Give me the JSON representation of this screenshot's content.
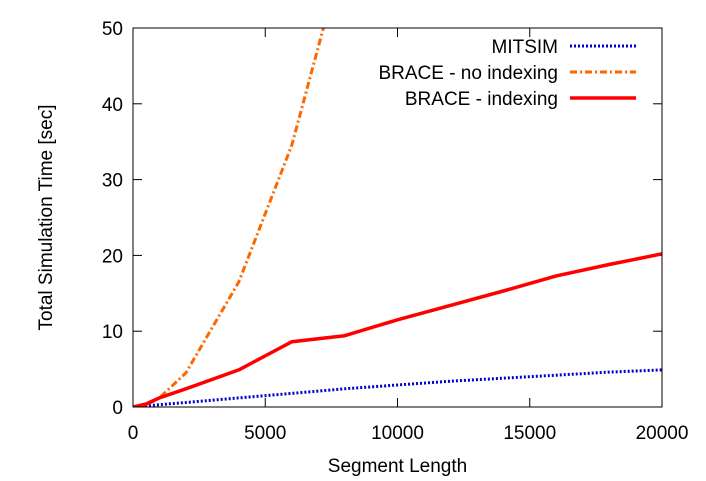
{
  "chart_data": {
    "type": "line",
    "title": "",
    "xlabel": "Segment Length",
    "ylabel": "Total Simulation Time [sec]",
    "xlim": [
      0,
      20000
    ],
    "ylim": [
      0,
      50
    ],
    "xticks": [
      0,
      5000,
      10000,
      15000,
      20000
    ],
    "yticks": [
      0,
      10,
      20,
      30,
      40,
      50
    ],
    "grid": false,
    "legend_position": "top-right",
    "series": [
      {
        "name": "MITSIM",
        "color": "#0000cc",
        "style": "dotted",
        "x": [
          0,
          1000,
          2000,
          4000,
          6000,
          8000,
          10000,
          12000,
          14000,
          16000,
          18000,
          20000
        ],
        "y": [
          0,
          0.3,
          0.6,
          1.2,
          1.8,
          2.4,
          2.9,
          3.4,
          3.8,
          4.2,
          4.6,
          4.9
        ]
      },
      {
        "name": "BRACE - no indexing",
        "color": "#ff6600",
        "style": "dash-dot",
        "x": [
          0,
          500,
          1000,
          2000,
          4000,
          6000,
          7200
        ],
        "y": [
          0,
          0.3,
          1.2,
          4.5,
          16.5,
          34.5,
          50
        ]
      },
      {
        "name": "BRACE - indexing",
        "color": "#ff0000",
        "style": "solid",
        "x": [
          0,
          500,
          1000,
          2000,
          4000,
          6000,
          8000,
          10000,
          12000,
          14000,
          16000,
          18000,
          20000
        ],
        "y": [
          0,
          0.4,
          1.2,
          2.4,
          4.9,
          8.6,
          9.4,
          11.5,
          13.4,
          15.3,
          17.3,
          18.8,
          20.2
        ]
      }
    ]
  }
}
